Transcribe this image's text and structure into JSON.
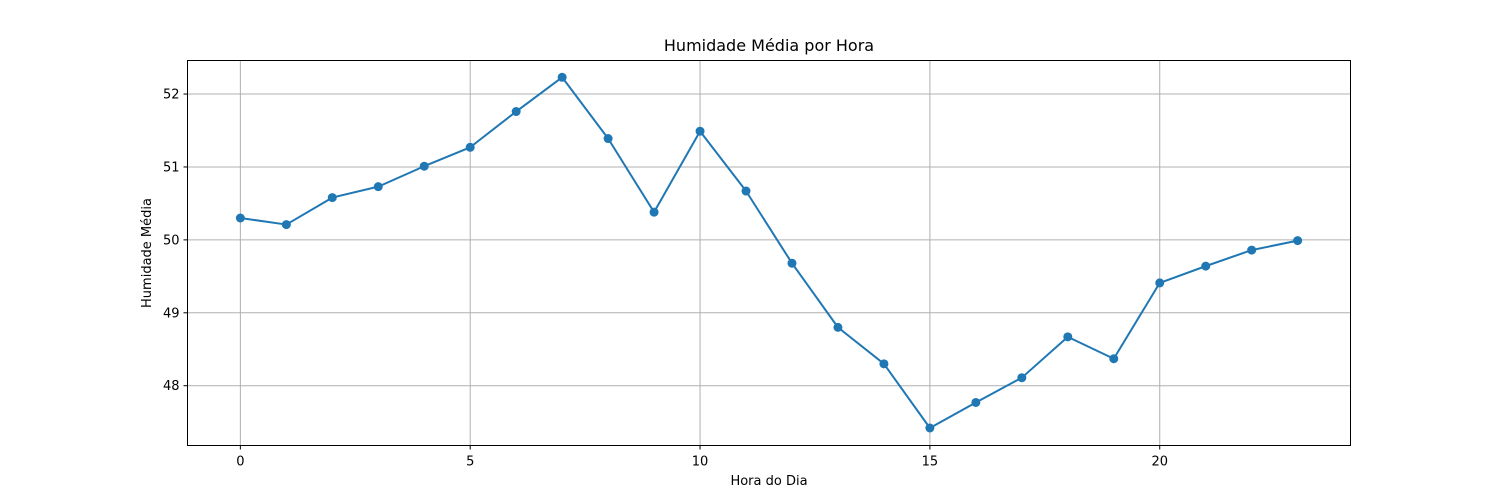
{
  "chart_data": {
    "type": "line",
    "title": "Humidade Média por Hora",
    "xlabel": "Hora do Dia",
    "ylabel": "Humidade Média",
    "xlim": [
      -1.15,
      24.15
    ],
    "ylim": [
      47.18,
      52.46
    ],
    "xticks": [
      0,
      5,
      10,
      15,
      20
    ],
    "yticks": [
      48,
      49,
      50,
      51,
      52
    ],
    "grid": true,
    "legend": "none",
    "marker": "circle",
    "color": "#1f77b4",
    "series": [
      {
        "x": [
          0,
          1,
          2,
          3,
          4,
          5,
          6,
          7,
          8,
          9,
          10,
          11,
          12,
          13,
          14,
          15,
          16,
          17,
          18,
          19,
          20,
          21,
          22,
          23
        ],
        "values": [
          50.3,
          50.21,
          50.58,
          50.73,
          51.01,
          51.27,
          51.76,
          52.23,
          51.39,
          50.38,
          51.49,
          50.67,
          49.68,
          48.8,
          48.3,
          47.42,
          47.77,
          48.11,
          48.67,
          48.37,
          49.41,
          49.64,
          49.86,
          49.99
        ]
      }
    ]
  }
}
